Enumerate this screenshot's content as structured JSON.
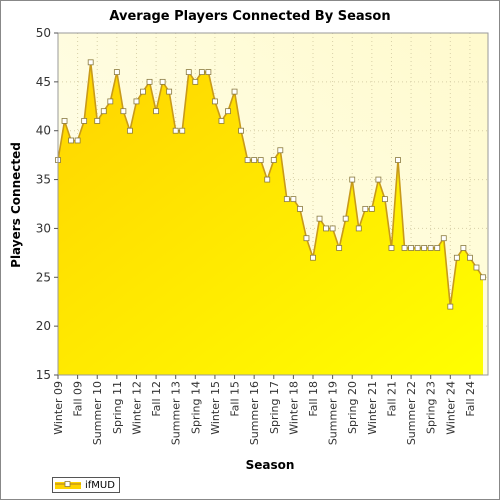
{
  "chart_data": {
    "type": "area",
    "title": "Average Players Connected By Season",
    "xlabel": "Season",
    "ylabel": "Players Connected",
    "ylim": [
      15,
      50
    ],
    "yticks": [
      15,
      20,
      25,
      30,
      35,
      40,
      45,
      50
    ],
    "grid": true,
    "legend_placement": "bottom-left",
    "colors": {
      "fill_top": "#ffd400",
      "fill_bottom": "#ffff00",
      "line": "#c89a1a",
      "marker_fill": "#ffffff",
      "plot_bg_top": "#fffacd",
      "plot_bg_bottom": "#fffff0"
    },
    "series": [
      {
        "name": "ifMUD",
        "values": [
          37,
          41,
          39,
          39,
          41,
          47,
          41,
          42,
          43,
          46,
          42,
          40,
          43,
          44,
          45,
          42,
          45,
          44,
          40,
          40,
          46,
          45,
          46,
          46,
          43,
          41,
          42,
          44,
          40,
          37,
          37,
          37,
          35,
          37,
          38,
          33,
          33,
          32,
          29,
          27,
          31,
          30,
          30,
          28,
          31,
          35,
          30,
          32,
          32,
          35,
          33,
          28,
          37,
          28,
          28,
          28,
          28,
          28,
          28,
          29,
          22,
          27,
          28,
          27,
          26,
          25
        ]
      }
    ],
    "tick_labels": [
      {
        "label": "Winter 09",
        "index": 0
      },
      {
        "label": "Fall 09",
        "index": 3
      },
      {
        "label": "Summer 10",
        "index": 6
      },
      {
        "label": "Spring 11",
        "index": 9
      },
      {
        "label": "Winter 12",
        "index": 12
      },
      {
        "label": "Fall 12",
        "index": 15
      },
      {
        "label": "Summer 13",
        "index": 18
      },
      {
        "label": "Spring 14",
        "index": 21
      },
      {
        "label": "Winter 15",
        "index": 24
      },
      {
        "label": "Fall 15",
        "index": 27
      },
      {
        "label": "Summer 16",
        "index": 30
      },
      {
        "label": "Spring 17",
        "index": 33
      },
      {
        "label": "Winter 18",
        "index": 36
      },
      {
        "label": "Fall 18",
        "index": 39
      },
      {
        "label": "Summer 19",
        "index": 42
      },
      {
        "label": "Spring 20",
        "index": 45
      },
      {
        "label": "Winter 21",
        "index": 48
      },
      {
        "label": "Fall 21",
        "index": 51
      },
      {
        "label": "Summer 22",
        "index": 54
      },
      {
        "label": "Spring 23",
        "index": 57
      },
      {
        "label": "Winter 24",
        "index": 60
      },
      {
        "label": "Fall 24",
        "index": 63
      }
    ]
  }
}
